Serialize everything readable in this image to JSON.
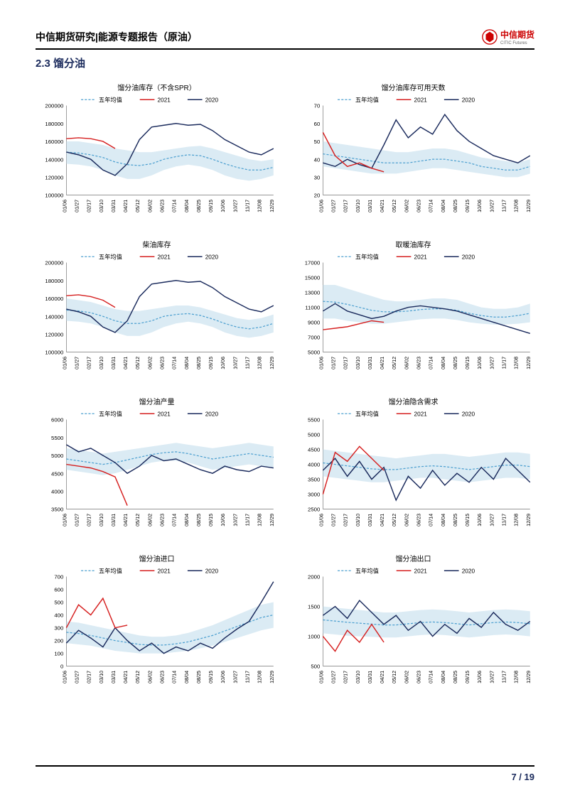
{
  "header": {
    "title": "中信期货研究|能源专题报告（原油）",
    "logo_text": "中信期货",
    "logo_sub": "CITIC Futures"
  },
  "section": {
    "title": "2.3 馏分油"
  },
  "footer": {
    "page": "7 / 19"
  },
  "legend": {
    "avg": "五年均值",
    "s2021": "2021",
    "s2020": "2020"
  },
  "x_labels": [
    "01/06",
    "01/27",
    "02/17",
    "03/10",
    "03/31",
    "04/21",
    "05/12",
    "06/02",
    "06/23",
    "07/14",
    "08/04",
    "08/25",
    "09/15",
    "10/06",
    "10/27",
    "11/17",
    "12/08",
    "12/29"
  ],
  "colors": {
    "band_fill": "#cce3ef",
    "band_stroke": "none",
    "avg": "#4da0d0",
    "s2020": "#1a2a5c",
    "s2021": "#d62020",
    "axis": "#888",
    "text": "#000",
    "bg": "#ffffff"
  },
  "charts": [
    {
      "title": "馏分油库存（不含SPR）",
      "ylim": [
        100000,
        200000
      ],
      "ytick_step": 20000,
      "band_hi": [
        160000,
        160000,
        158000,
        156000,
        152000,
        150000,
        148000,
        148000,
        150000,
        152000,
        154000,
        155000,
        152000,
        148000,
        144000,
        140000,
        138000,
        140000
      ],
      "band_lo": [
        135000,
        134000,
        132000,
        128000,
        122000,
        118000,
        118000,
        122000,
        128000,
        132000,
        134000,
        132000,
        128000,
        122000,
        118000,
        116000,
        118000,
        122000
      ],
      "avg": [
        148000,
        147000,
        145000,
        142000,
        137000,
        134000,
        133000,
        135000,
        140000,
        143000,
        145000,
        144000,
        140000,
        135000,
        131000,
        128000,
        128000,
        131000
      ],
      "s2020": [
        148000,
        145000,
        140000,
        128000,
        122000,
        135000,
        162000,
        176000,
        178000,
        180000,
        178000,
        179000,
        172000,
        162000,
        155000,
        148000,
        145000,
        152000
      ],
      "s2021": [
        163000,
        164000,
        163000,
        160000,
        152000
      ]
    },
    {
      "title": "馏分油库存可用天数",
      "ylim": [
        20,
        70
      ],
      "ytick_step": 10,
      "band_hi": [
        50,
        49,
        48,
        47,
        46,
        45,
        44,
        44,
        45,
        46,
        46,
        45,
        43,
        41,
        40,
        39,
        38,
        40
      ],
      "band_lo": [
        36,
        35,
        34,
        33,
        32,
        32,
        32,
        33,
        34,
        35,
        35,
        34,
        33,
        32,
        31,
        30,
        30,
        32
      ],
      "avg": [
        43,
        42,
        41,
        40,
        39,
        38,
        38,
        38,
        39,
        40,
        40,
        39,
        38,
        36,
        35,
        34,
        34,
        36
      ],
      "s2020": [
        38,
        36,
        40,
        37,
        35,
        48,
        62,
        52,
        58,
        54,
        65,
        56,
        50,
        46,
        42,
        40,
        38,
        42
      ],
      "s2021": [
        55,
        42,
        36,
        38,
        35,
        33
      ]
    },
    {
      "title": "柴油库存",
      "ylim": [
        100000,
        200000
      ],
      "ytick_step": 20000,
      "band_hi": [
        160000,
        158000,
        156000,
        152000,
        148000,
        146000,
        146000,
        148000,
        150000,
        152000,
        152000,
        150000,
        146000,
        142000,
        138000,
        136000,
        138000,
        142000
      ],
      "band_lo": [
        135000,
        134000,
        132000,
        128000,
        122000,
        118000,
        118000,
        122000,
        128000,
        132000,
        134000,
        132000,
        128000,
        122000,
        118000,
        116000,
        118000,
        122000
      ],
      "avg": [
        147000,
        146000,
        144000,
        140000,
        135000,
        132000,
        132000,
        135000,
        140000,
        142000,
        143000,
        141000,
        137000,
        132000,
        128000,
        126000,
        128000,
        132000
      ],
      "s2020": [
        148000,
        145000,
        140000,
        128000,
        122000,
        135000,
        162000,
        176000,
        178000,
        180000,
        178000,
        179000,
        172000,
        162000,
        155000,
        148000,
        145000,
        152000
      ],
      "s2021": [
        163000,
        164000,
        162000,
        158000,
        150000
      ]
    },
    {
      "title": "取暖油库存",
      "ylim": [
        5000,
        17000
      ],
      "ytick_step": 2000,
      "band_hi": [
        14000,
        14000,
        13500,
        13000,
        12500,
        12000,
        11800,
        11800,
        12000,
        12200,
        12200,
        12000,
        11500,
        11000,
        10800,
        10800,
        11000,
        11500
      ],
      "band_lo": [
        9500,
        9500,
        9200,
        9000,
        8800,
        8800,
        9000,
        9200,
        9400,
        9500,
        9500,
        9300,
        9000,
        8800,
        8700,
        8700,
        8800,
        9000
      ],
      "avg": [
        11800,
        11700,
        11400,
        11000,
        10600,
        10400,
        10400,
        10500,
        10700,
        10800,
        10800,
        10600,
        10200,
        9900,
        9700,
        9700,
        9900,
        10200
      ],
      "s2020": [
        10500,
        11500,
        10500,
        10000,
        9500,
        9800,
        10500,
        11000,
        11200,
        11000,
        10800,
        10500,
        10000,
        9500,
        9000,
        8500,
        8000,
        7500
      ],
      "s2021": [
        8000,
        8200,
        8400,
        8800,
        9200,
        9000
      ]
    },
    {
      "title": "馏分油产量",
      "ylim": [
        3500,
        6000
      ],
      "ytick_step": 500,
      "band_hi": [
        5200,
        5150,
        5100,
        5050,
        5100,
        5150,
        5200,
        5250,
        5300,
        5350,
        5300,
        5250,
        5200,
        5250,
        5300,
        5350,
        5300,
        5250
      ],
      "band_lo": [
        4600,
        4550,
        4500,
        4450,
        4500,
        4600,
        4700,
        4800,
        4850,
        4850,
        4800,
        4700,
        4600,
        4650,
        4700,
        4750,
        4700,
        4650
      ],
      "avg": [
        4900,
        4850,
        4800,
        4750,
        4800,
        4875,
        4950,
        5025,
        5075,
        5100,
        5050,
        4975,
        4900,
        4950,
        5000,
        5050,
        5000,
        4950
      ],
      "s2020": [
        5300,
        5100,
        5200,
        5000,
        4800,
        4500,
        4700,
        5000,
        4850,
        4900,
        4750,
        4600,
        4500,
        4700,
        4600,
        4550,
        4700,
        4650
      ],
      "s2021": [
        4750,
        4700,
        4650,
        4550,
        4400,
        3600
      ]
    },
    {
      "title": "馏分油隐含需求",
      "ylim": [
        2500,
        5500
      ],
      "ytick_step": 500,
      "band_hi": [
        4500,
        4450,
        4400,
        4350,
        4300,
        4250,
        4200,
        4250,
        4300,
        4350,
        4350,
        4300,
        4250,
        4300,
        4350,
        4400,
        4400,
        4350
      ],
      "band_lo": [
        3600,
        3550,
        3500,
        3450,
        3400,
        3400,
        3450,
        3500,
        3550,
        3550,
        3500,
        3450,
        3400,
        3450,
        3500,
        3550,
        3550,
        3500
      ],
      "avg": [
        4050,
        4000,
        3950,
        3900,
        3850,
        3825,
        3825,
        3875,
        3925,
        3950,
        3925,
        3875,
        3825,
        3875,
        3925,
        3975,
        3975,
        3925
      ],
      "s2020": [
        3800,
        4200,
        3600,
        4100,
        3500,
        3900,
        2800,
        3600,
        3200,
        3800,
        3300,
        3700,
        3400,
        3900,
        3500,
        4200,
        3800,
        3400
      ],
      "s2021": [
        3000,
        4400,
        4100,
        4600,
        4200,
        3800
      ]
    },
    {
      "title": "馏分油进口",
      "ylim": [
        0,
        700
      ],
      "ytick_step": 100,
      "band_hi": [
        350,
        340,
        320,
        300,
        280,
        260,
        240,
        230,
        230,
        240,
        260,
        290,
        320,
        360,
        400,
        440,
        480,
        500
      ],
      "band_lo": [
        180,
        170,
        160,
        140,
        120,
        110,
        100,
        100,
        100,
        110,
        120,
        140,
        160,
        190,
        220,
        250,
        280,
        300
      ],
      "avg": [
        265,
        255,
        240,
        220,
        200,
        185,
        170,
        165,
        165,
        175,
        190,
        215,
        240,
        275,
        310,
        345,
        380,
        400
      ],
      "s2020": [
        180,
        280,
        220,
        150,
        300,
        200,
        120,
        180,
        100,
        150,
        120,
        180,
        140,
        220,
        290,
        350,
        500,
        660
      ],
      "s2021": [
        300,
        480,
        400,
        530,
        300,
        320
      ]
    },
    {
      "title": "馏分油出口",
      "ylim": [
        500,
        2000
      ],
      "ytick_step": 500,
      "band_hi": [
        1500,
        1480,
        1460,
        1440,
        1420,
        1400,
        1400,
        1420,
        1440,
        1450,
        1440,
        1420,
        1400,
        1420,
        1440,
        1450,
        1440,
        1420
      ],
      "band_lo": [
        1050,
        1030,
        1010,
        1000,
        990,
        980,
        980,
        1000,
        1020,
        1030,
        1020,
        1000,
        980,
        1000,
        1020,
        1030,
        1020,
        1000
      ],
      "avg": [
        1275,
        1255,
        1235,
        1220,
        1205,
        1190,
        1190,
        1210,
        1230,
        1240,
        1230,
        1210,
        1190,
        1210,
        1230,
        1240,
        1230,
        1210
      ],
      "s2020": [
        1350,
        1500,
        1300,
        1600,
        1400,
        1200,
        1350,
        1100,
        1250,
        1000,
        1200,
        1050,
        1300,
        1150,
        1400,
        1200,
        1100,
        1250
      ],
      "s2021": [
        1000,
        750,
        1100,
        900,
        1200,
        900
      ]
    }
  ]
}
